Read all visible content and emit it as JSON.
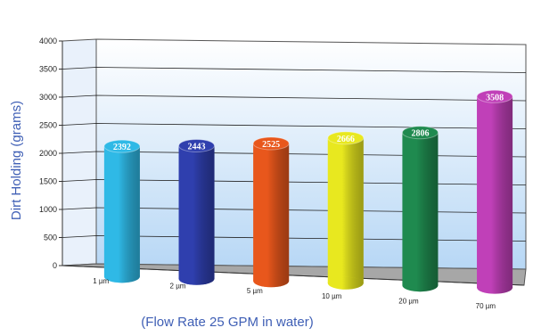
{
  "chart_data": {
    "type": "bar",
    "style": "3d-cylinder",
    "title": "",
    "xlabel": "(Flow Rate 25 GPM in water)",
    "ylabel": "Dirt Holding (grams)",
    "ylim": [
      0,
      4000
    ],
    "yticks": [
      "0",
      "500",
      "1000",
      "1500",
      "2000",
      "2500",
      "3000",
      "3500",
      "4000"
    ],
    "categories": [
      "1 µm",
      "2 µm",
      "5 µm",
      "10 µm",
      "20 µm",
      "70 µm"
    ],
    "values": [
      2392,
      2443,
      2525,
      2666,
      2806,
      3508
    ],
    "value_labels": [
      "2392",
      "2443",
      "2525",
      "2666",
      "2806",
      "3508"
    ],
    "colors": [
      "#2fb9e6",
      "#2f3fae",
      "#e8571c",
      "#e8e81f",
      "#1f8a4f",
      "#c040b8"
    ],
    "grid": true,
    "legend": "none"
  }
}
